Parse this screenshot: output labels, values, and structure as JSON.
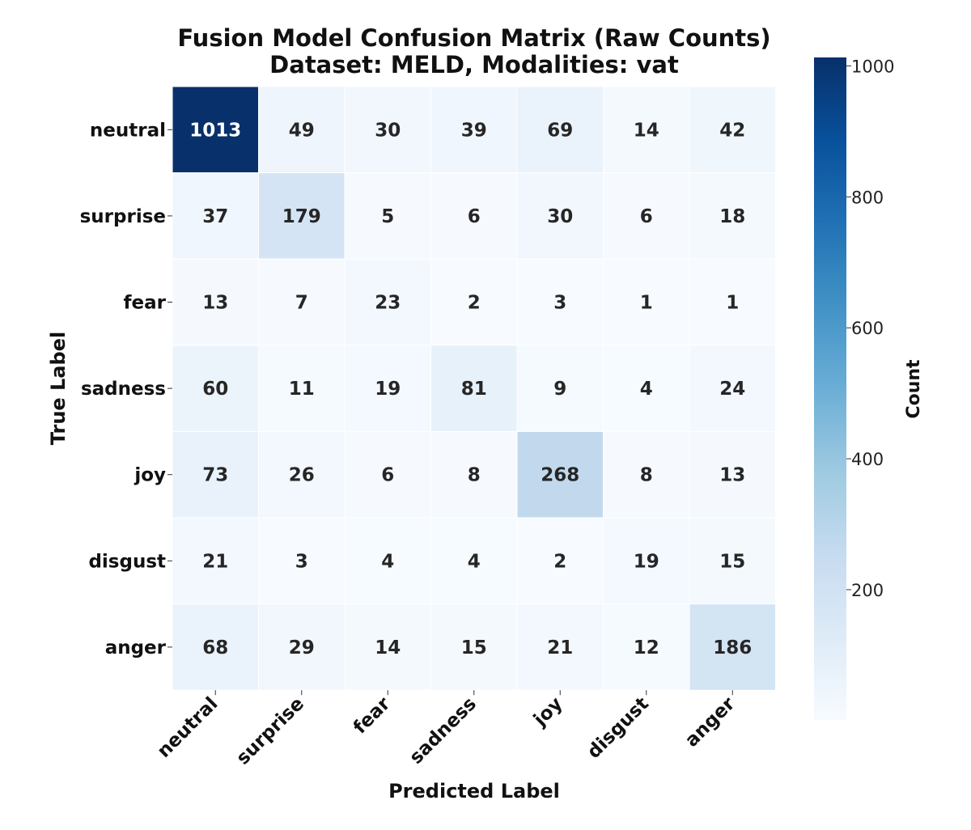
{
  "chart_data": {
    "type": "heatmap",
    "title": "Fusion Model Confusion Matrix (Raw Counts)",
    "subtitle": "Dataset: MELD, Modalities: vat",
    "xlabel": "Predicted Label",
    "ylabel": "True Label",
    "x_categories": [
      "neutral",
      "surprise",
      "fear",
      "sadness",
      "joy",
      "disgust",
      "anger"
    ],
    "y_categories": [
      "neutral",
      "surprise",
      "fear",
      "sadness",
      "joy",
      "disgust",
      "anger"
    ],
    "values": [
      [
        1013,
        49,
        30,
        39,
        69,
        14,
        42
      ],
      [
        37,
        179,
        5,
        6,
        30,
        6,
        18
      ],
      [
        13,
        7,
        23,
        2,
        3,
        1,
        1
      ],
      [
        60,
        11,
        19,
        81,
        9,
        4,
        24
      ],
      [
        73,
        26,
        6,
        8,
        268,
        8,
        13
      ],
      [
        21,
        3,
        4,
        4,
        2,
        19,
        15
      ],
      [
        68,
        29,
        14,
        15,
        21,
        12,
        186
      ]
    ],
    "colorbar": {
      "label": "Count",
      "ticks": [
        200,
        400,
        600,
        800,
        1000
      ],
      "range": [
        1,
        1013
      ],
      "colormap": "Blues",
      "color_low": "#f7fbff",
      "color_high": "#08306b"
    },
    "grid": false
  }
}
